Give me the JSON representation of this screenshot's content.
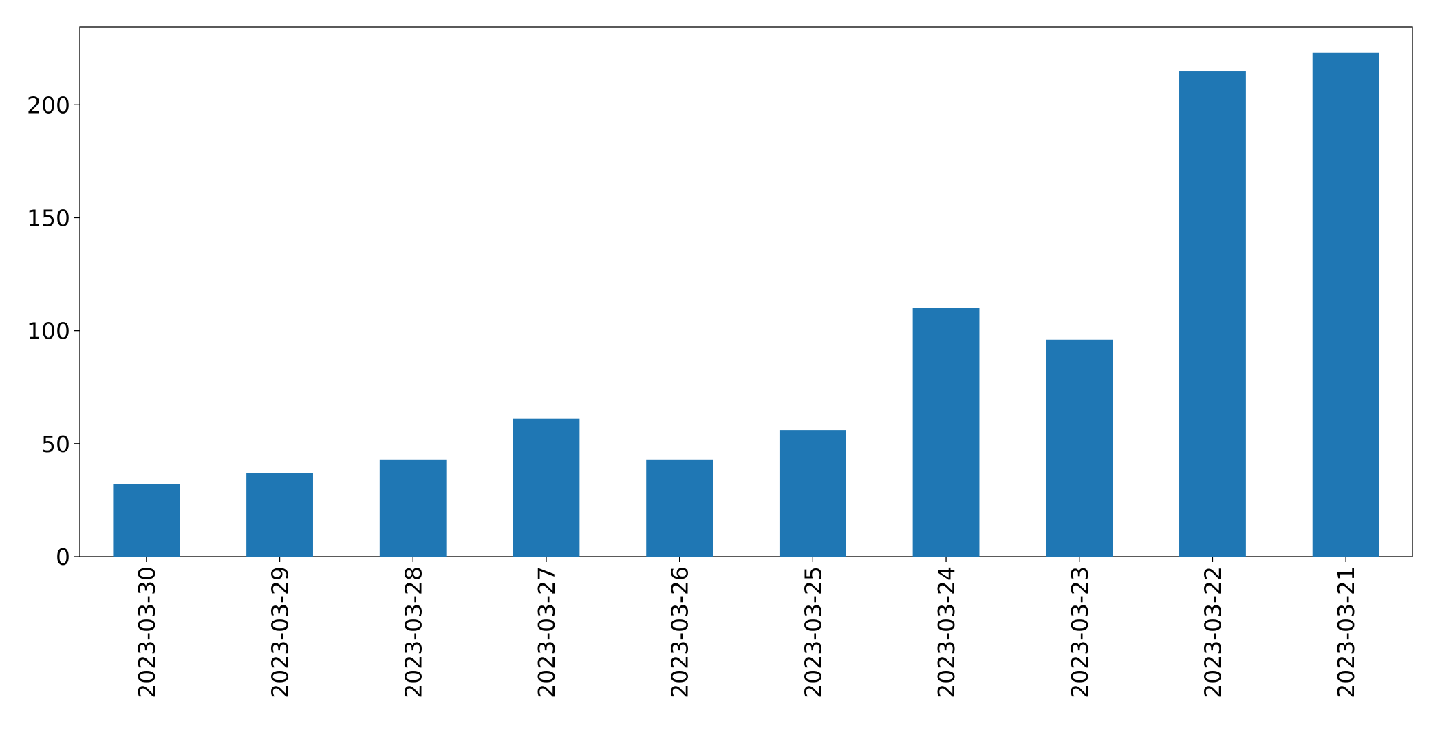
{
  "chart_data": {
    "type": "bar",
    "categories": [
      "2023-03-30",
      "2023-03-29",
      "2023-03-28",
      "2023-03-27",
      "2023-03-26",
      "2023-03-25",
      "2023-03-24",
      "2023-03-23",
      "2023-03-22",
      "2023-03-21"
    ],
    "values": [
      32,
      37,
      43,
      61,
      43,
      56,
      110,
      96,
      215,
      223
    ],
    "color": "#1f77b4",
    "ylim": [
      0,
      234.5
    ],
    "yticks": [
      0,
      50,
      100,
      150,
      200
    ],
    "grid": false
  }
}
